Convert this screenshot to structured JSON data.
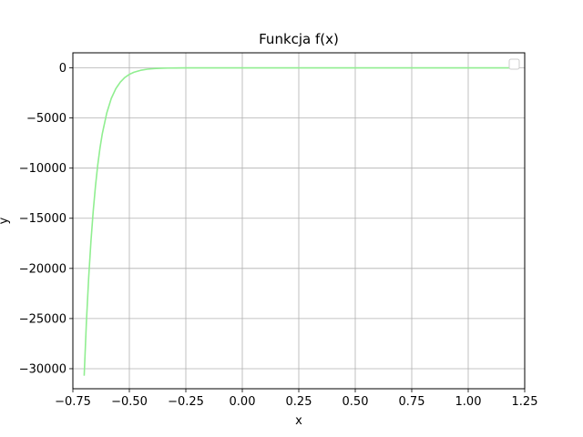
{
  "chart_data": {
    "type": "line",
    "title": "Funkcja f(x)",
    "xlabel": "x",
    "ylabel": "y",
    "xlim": [
      -0.75,
      1.25
    ],
    "ylim": [
      -32000,
      1500
    ],
    "x_ticks": [
      -0.75,
      -0.5,
      -0.25,
      0.0,
      0.25,
      0.5,
      0.75,
      1.0,
      1.25
    ],
    "x_tick_labels": [
      "−0.75",
      "−0.50",
      "−0.25",
      "0.00",
      "0.25",
      "0.50",
      "0.75",
      "1.00",
      "1.25"
    ],
    "y_ticks": [
      0,
      -5000,
      -10000,
      -15000,
      -20000,
      -25000,
      -30000
    ],
    "y_tick_labels": [
      "0",
      "−5000",
      "−10000",
      "−15000",
      "−20000",
      "−25000",
      "−30000"
    ],
    "grid": true,
    "legend": {
      "placement": "top-right",
      "entries": []
    },
    "colors": {
      "line": "#90ee90",
      "grid": "#b0b0b0",
      "axes": "#000000"
    },
    "series": [
      {
        "x": [
          -0.7,
          -0.69,
          -0.68,
          -0.67,
          -0.66,
          -0.65,
          -0.64,
          -0.63,
          -0.62,
          -0.6,
          -0.58,
          -0.56,
          -0.54,
          -0.52,
          -0.5,
          -0.48,
          -0.45,
          -0.42,
          -0.39,
          -0.36,
          -0.33,
          -0.3,
          -0.25,
          -0.2,
          -0.1,
          0.0,
          0.25,
          0.5,
          0.75,
          1.0,
          1.2
        ],
        "y": [
          -30700,
          -25300,
          -20900,
          -17300,
          -14300,
          -11800,
          -9700,
          -8000,
          -6600,
          -4500,
          -3050,
          -2080,
          -1420,
          -960,
          -650,
          -440,
          -245,
          -135,
          -74,
          -40,
          -22,
          -12,
          -4,
          -1,
          0,
          0,
          0,
          0,
          0,
          0,
          0
        ]
      }
    ]
  }
}
